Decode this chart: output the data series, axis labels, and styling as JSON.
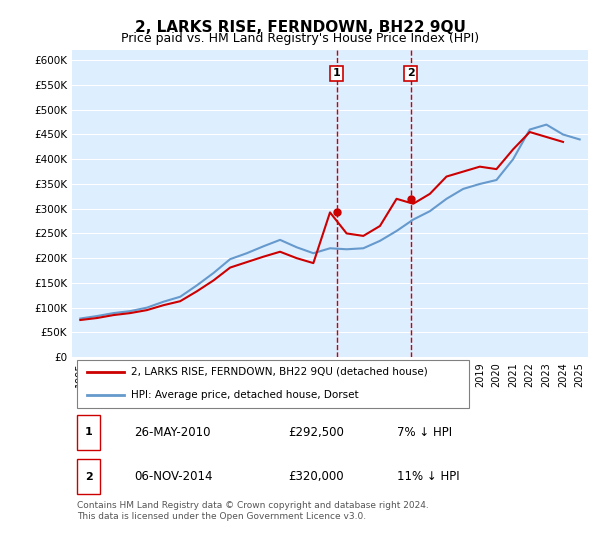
{
  "title": "2, LARKS RISE, FERNDOWN, BH22 9QU",
  "subtitle": "Price paid vs. HM Land Registry's House Price Index (HPI)",
  "title_fontsize": 11,
  "subtitle_fontsize": 9,
  "background_color": "#ffffff",
  "plot_bg_color": "#ddeeff",
  "grid_color": "#ffffff",
  "ylabel_ticks": [
    "£0",
    "£50K",
    "£100K",
    "£150K",
    "£200K",
    "£250K",
    "£300K",
    "£350K",
    "£400K",
    "£450K",
    "£500K",
    "£550K",
    "£600K"
  ],
  "ytick_values": [
    0,
    50000,
    100000,
    150000,
    200000,
    250000,
    300000,
    350000,
    400000,
    450000,
    500000,
    550000,
    600000
  ],
  "years_x": [
    1995,
    1996,
    1997,
    1998,
    1999,
    2000,
    2001,
    2002,
    2003,
    2004,
    2005,
    2006,
    2007,
    2008,
    2009,
    2010,
    2011,
    2012,
    2013,
    2014,
    2015,
    2016,
    2017,
    2018,
    2019,
    2020,
    2021,
    2022,
    2023,
    2024,
    2025
  ],
  "hpi_values": [
    78000,
    83000,
    89000,
    93000,
    100000,
    112000,
    122000,
    145000,
    170000,
    198000,
    210000,
    224000,
    237000,
    222000,
    210000,
    220000,
    218000,
    220000,
    235000,
    255000,
    278000,
    295000,
    320000,
    340000,
    350000,
    358000,
    400000,
    460000,
    470000,
    450000,
    440000
  ],
  "property_x": [
    1995,
    1996,
    1997,
    1998,
    1999,
    2000,
    2001,
    2002,
    2003,
    2004,
    2005,
    2006,
    2007,
    2008,
    2009,
    2010,
    2011,
    2012,
    2013,
    2014,
    2015,
    2016,
    2017,
    2018,
    2019,
    2020,
    2021,
    2022,
    2023,
    2024
  ],
  "property_values": [
    75000,
    79000,
    85000,
    89000,
    95000,
    105000,
    113000,
    133000,
    155000,
    181000,
    192000,
    203000,
    213000,
    200000,
    190000,
    292500,
    250000,
    245000,
    265000,
    320000,
    310000,
    330000,
    365000,
    375000,
    385000,
    380000,
    420000,
    455000,
    445000,
    435000
  ],
  "hpi_color": "#6699cc",
  "property_color": "#cc0000",
  "sale1_x": 2010.4,
  "sale1_y": 292500,
  "sale1_label": "1",
  "sale2_x": 2014.85,
  "sale2_y": 320000,
  "sale2_label": "2",
  "vline_color": "#cc0000",
  "marker_color": "#cc0000",
  "legend_property": "2, LARKS RISE, FERNDOWN, BH22 9QU (detached house)",
  "legend_hpi": "HPI: Average price, detached house, Dorset",
  "table_rows": [
    {
      "label": "1",
      "date": "26-MAY-2010",
      "price": "£292,500",
      "hpi": "7% ↓ HPI"
    },
    {
      "label": "2",
      "date": "06-NOV-2014",
      "price": "£320,000",
      "hpi": "11% ↓ HPI"
    }
  ],
  "footnote": "Contains HM Land Registry data © Crown copyright and database right 2024.\nThis data is licensed under the Open Government Licence v3.0.",
  "xlim": [
    1994.5,
    2025.5
  ],
  "ylim": [
    0,
    620000
  ]
}
